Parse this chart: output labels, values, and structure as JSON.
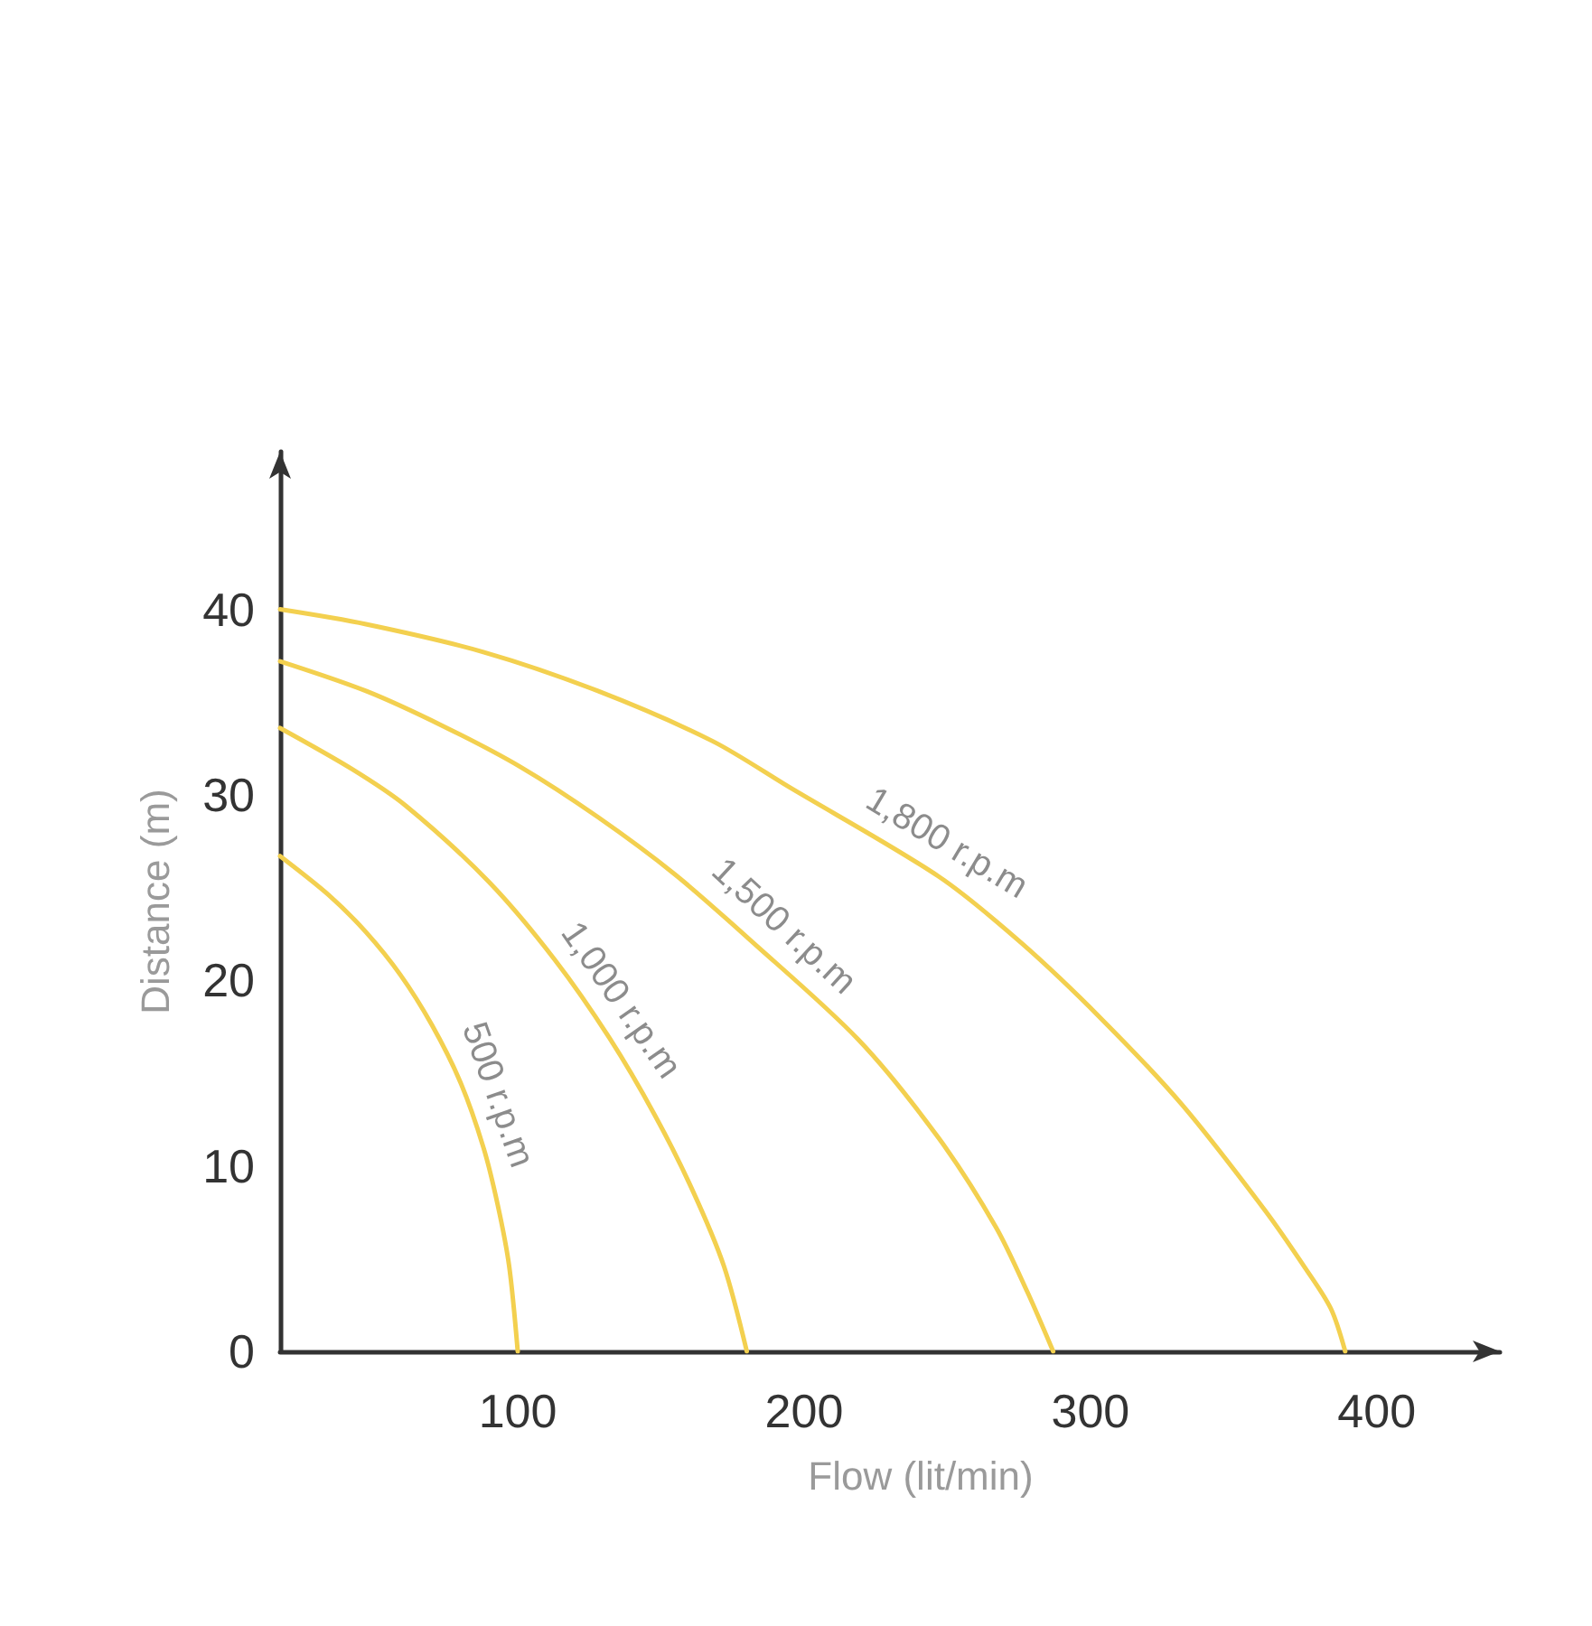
{
  "chart_data": {
    "type": "line",
    "xlabel": "Flow (lit/min)",
    "ylabel": "Distance (m)",
    "xlim": [
      17,
      443
    ],
    "ylim": [
      0,
      48.5
    ],
    "xticks": [
      100,
      200,
      300,
      400
    ],
    "yticks": [
      0,
      10,
      20,
      30,
      40
    ],
    "grid": false,
    "marker": "none",
    "line_style": "solid",
    "series": [
      {
        "name": "500 r.p.m",
        "color": "#f3d04f",
        "x": [
          17,
          34,
          47,
          59,
          70,
          80,
          88,
          93,
          97,
          100
        ],
        "values": [
          26.7,
          24.6,
          22.6,
          20.3,
          17.6,
          14.5,
          11.0,
          7.9,
          4.6,
          0
        ]
      },
      {
        "name": "1,000 r.p.m",
        "color": "#f3d04f",
        "x": [
          17,
          42,
          61,
          90,
          113,
          132,
          148,
          161,
          172,
          180
        ],
        "values": [
          33.6,
          31.4,
          29.4,
          25.3,
          21.1,
          16.9,
          12.7,
          8.7,
          4.6,
          0
        ]
      },
      {
        "name": "1,500 r.p.m",
        "color": "#f3d04f",
        "x": [
          17,
          47,
          74,
          101,
          128,
          155,
          181,
          219,
          247,
          267,
          278,
          287
        ],
        "values": [
          37.2,
          35.6,
          33.7,
          31.5,
          28.8,
          25.7,
          22.2,
          16.8,
          11.5,
          6.7,
          3.2,
          0
        ]
      },
      {
        "name": "1,800 r.p.m",
        "color": "#f3d04f",
        "x": [
          17,
          47,
          88,
          128,
          168,
          195,
          247,
          276,
          304,
          332,
          361,
          375,
          384,
          389
        ],
        "values": [
          40.0,
          39.2,
          37.7,
          35.6,
          32.9,
          30.4,
          25.6,
          22.0,
          17.9,
          13.3,
          7.6,
          4.5,
          2.3,
          0
        ]
      }
    ]
  }
}
